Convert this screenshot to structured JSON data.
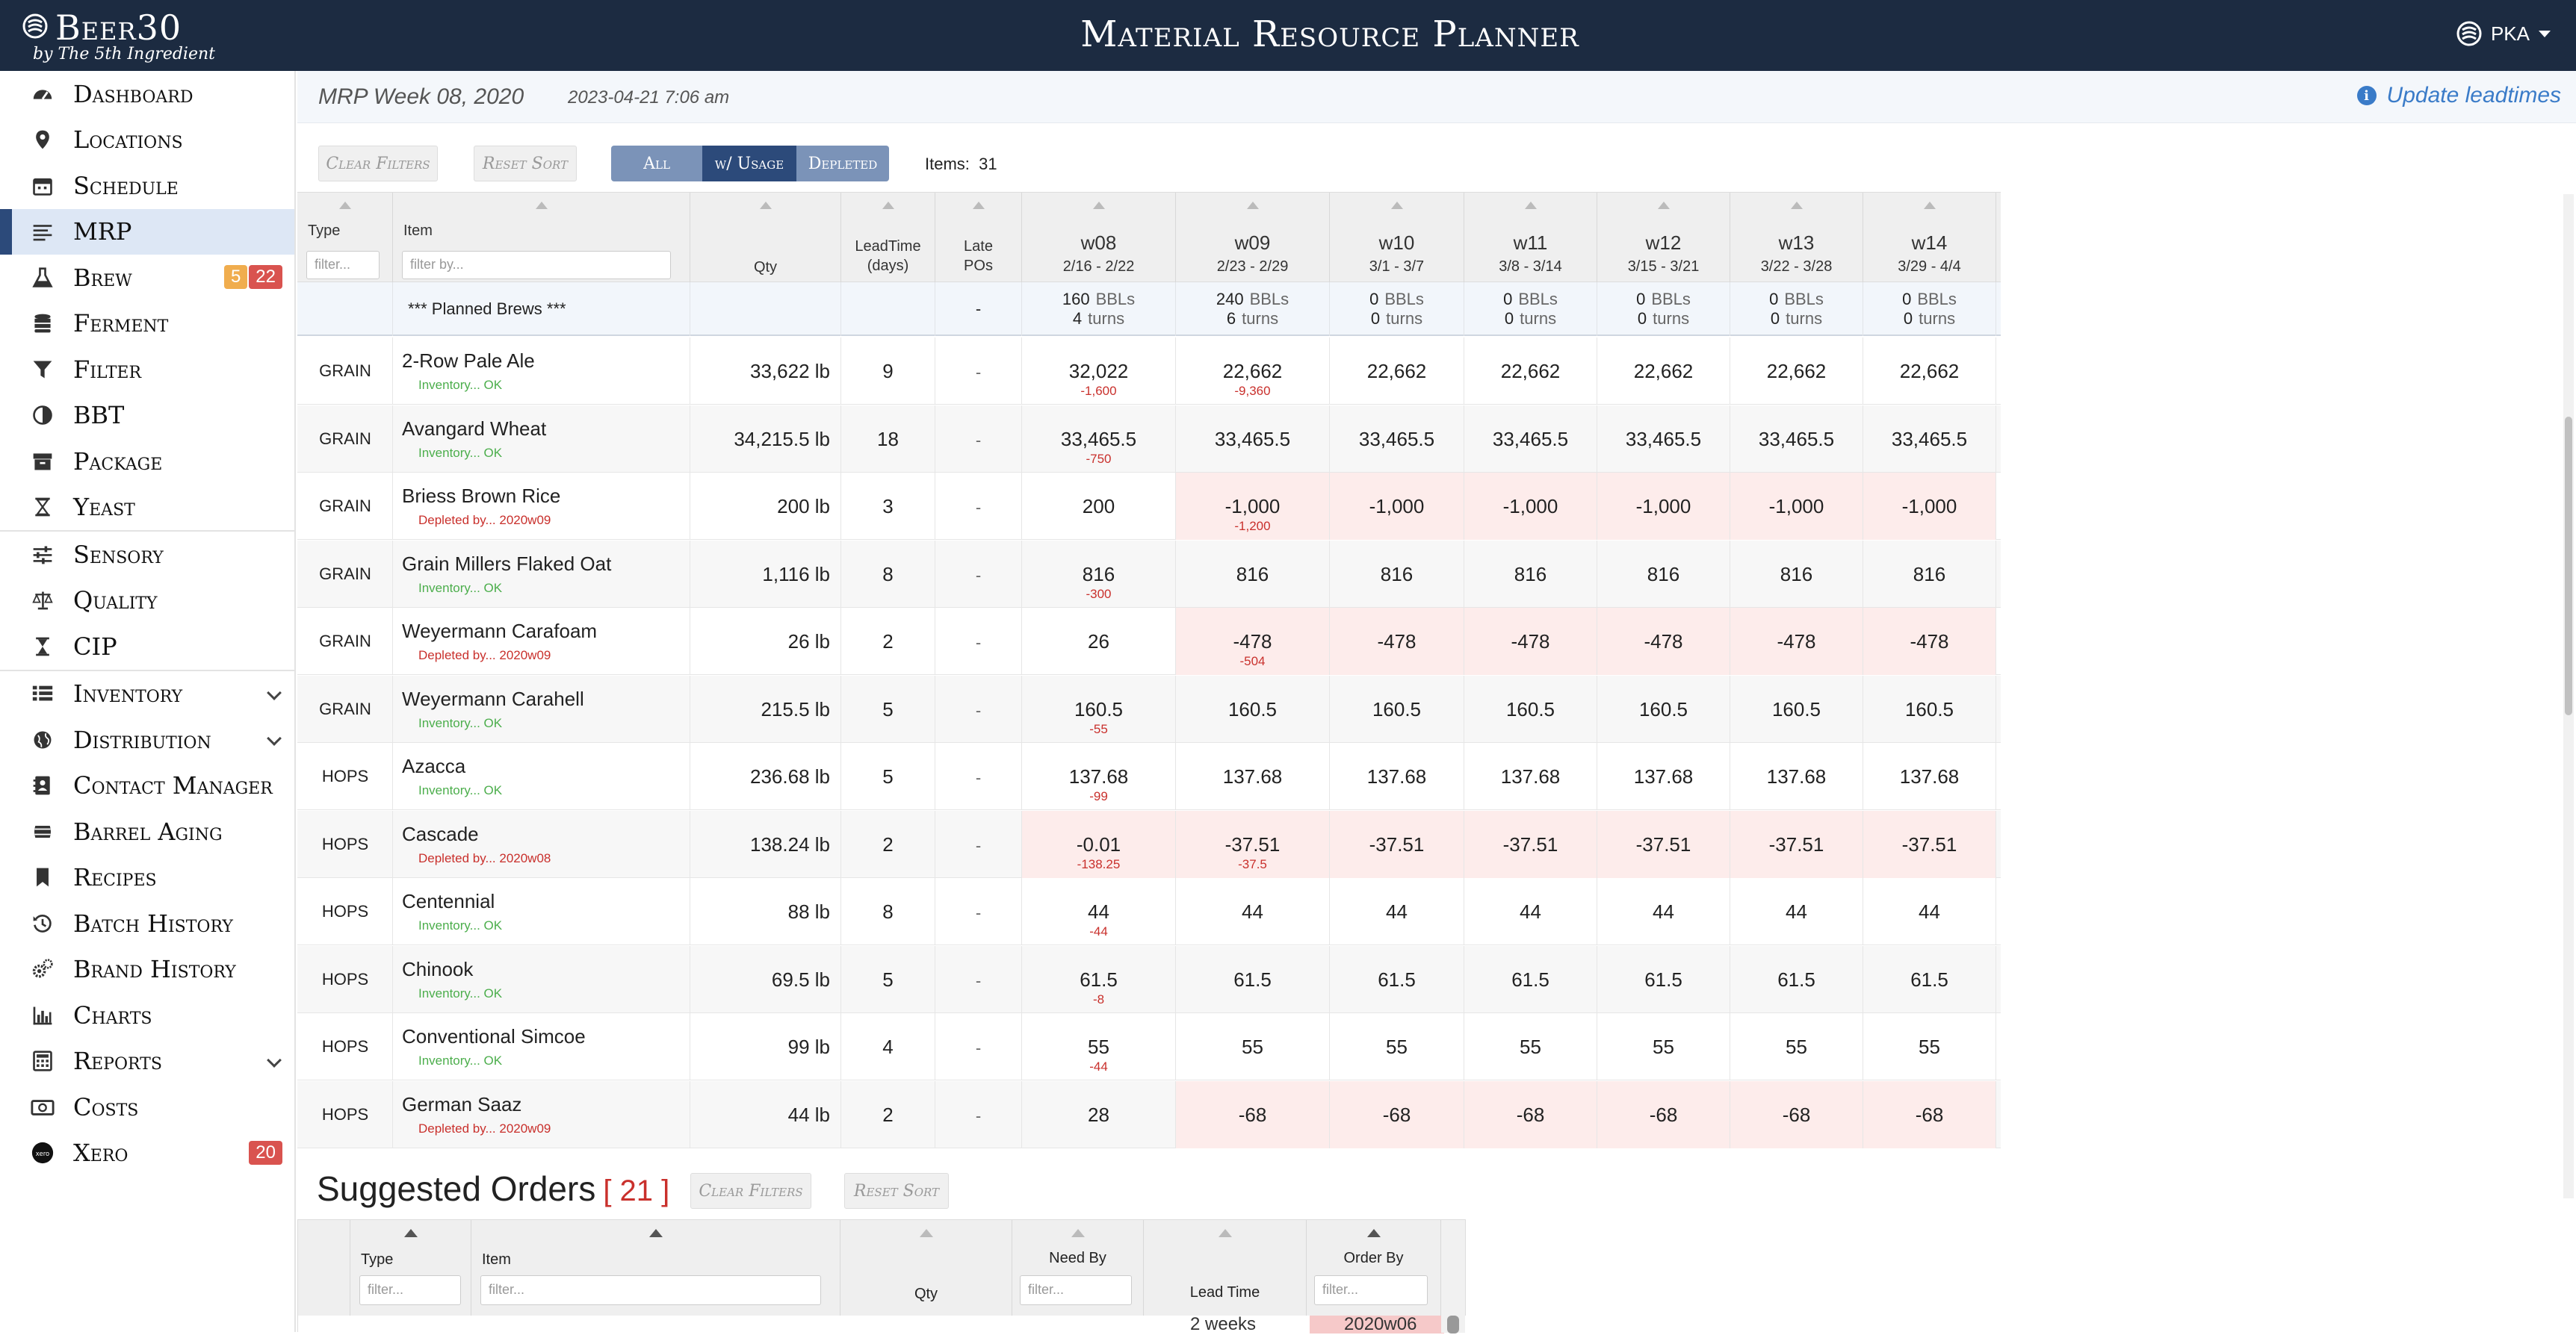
{
  "brand": {
    "name": "Beer30",
    "sub": "by The 5th Ingredient"
  },
  "app_title": "Material Resource Planner",
  "user": "PKA",
  "sidebar": [
    {
      "label": "Dashboard",
      "icon": "speedometer-icon"
    },
    {
      "label": "Locations",
      "icon": "map-marker-icon"
    },
    {
      "label": "Schedule",
      "icon": "calendar-icon"
    },
    {
      "label": "MRP",
      "icon": "list-lines-icon",
      "active": true
    },
    {
      "label": "Brew",
      "icon": "flask-icon",
      "badges": [
        "5",
        "22"
      ]
    },
    {
      "label": "Ferment",
      "icon": "database-icon"
    },
    {
      "label": "Filter",
      "icon": "funnel-icon"
    },
    {
      "label": "BBT",
      "icon": "half-circle-icon"
    },
    {
      "label": "Package",
      "icon": "archive-box-icon"
    },
    {
      "label": "Yeast",
      "icon": "hourglass-icon"
    },
    {
      "label": "Sensory",
      "icon": "sliders-icon"
    },
    {
      "label": "Quality",
      "icon": "scale-icon"
    },
    {
      "label": "CIP",
      "icon": "timer-icon"
    },
    {
      "label": "Inventory",
      "icon": "list-icon",
      "chevron": true
    },
    {
      "label": "Distribution",
      "icon": "globe-icon",
      "chevron": true
    },
    {
      "label": "Contact Manager",
      "icon": "address-book-icon"
    },
    {
      "label": "Barrel Aging",
      "icon": "barrel-icon"
    },
    {
      "label": "Recipes",
      "icon": "bookmark-icon"
    },
    {
      "label": "Batch History",
      "icon": "history-icon"
    },
    {
      "label": "Brand History",
      "icon": "cogs-icon"
    },
    {
      "label": "Charts",
      "icon": "bar-chart-icon"
    },
    {
      "label": "Reports",
      "icon": "calculator-icon",
      "chevron": true
    },
    {
      "label": "Costs",
      "icon": "money-icon"
    },
    {
      "label": "Xero",
      "icon": "xero-icon",
      "badges": [
        "20"
      ]
    }
  ],
  "header": {
    "week": "MRP Week 08, 2020",
    "date": "2023-04-21 7:06 am",
    "update_link": "Update leadtimes"
  },
  "toolbar": {
    "clear_filters": "Clear Filters",
    "reset_sort": "Reset Sort",
    "segments": [
      {
        "label": "All",
        "active": false
      },
      {
        "label": "w/ Usage",
        "active": true
      },
      {
        "label": "Depleted",
        "active": false
      }
    ],
    "items_label": "Items:",
    "items_count": "31"
  },
  "table": {
    "headers": {
      "type": "Type",
      "type_placeholder": "filter...",
      "item": "Item",
      "item_placeholder": "filter by...",
      "qty": "Qty",
      "leadtime": "LeadTime",
      "leadtime_unit": "(days)",
      "late": "Late",
      "late2": "POs"
    },
    "weeks": [
      {
        "name": "w08",
        "range": "2/16 - 2/22"
      },
      {
        "name": "w09",
        "range": "2/23 - 2/29"
      },
      {
        "name": "w10",
        "range": "3/1 - 3/7"
      },
      {
        "name": "w11",
        "range": "3/8 - 3/14"
      },
      {
        "name": "w12",
        "range": "3/15 - 3/21"
      },
      {
        "name": "w13",
        "range": "3/22 - 3/28"
      },
      {
        "name": "w14",
        "range": "3/29 - 4/4"
      }
    ],
    "planned": {
      "label": "*** Planned Brews ***",
      "late": "-",
      "bbl_unit": "BBLs",
      "turns_unit": "turns",
      "cells": [
        {
          "bbl": "160",
          "turns": "4"
        },
        {
          "bbl": "240",
          "turns": "6"
        },
        {
          "bbl": "0",
          "turns": "0"
        },
        {
          "bbl": "0",
          "turns": "0"
        },
        {
          "bbl": "0",
          "turns": "0"
        },
        {
          "bbl": "0",
          "turns": "0"
        },
        {
          "bbl": "0",
          "turns": "0"
        }
      ]
    },
    "rows": [
      {
        "type": "GRAIN",
        "item": "2-Row Pale Ale",
        "status": "Inventory... OK",
        "ok": true,
        "qty": "33,622 lb",
        "lt": "9",
        "late": "-",
        "weeks": [
          {
            "v": "32,022",
            "u": "-1,600"
          },
          {
            "v": "22,662",
            "u": "-9,360"
          },
          {
            "v": "22,662"
          },
          {
            "v": "22,662"
          },
          {
            "v": "22,662"
          },
          {
            "v": "22,662"
          },
          {
            "v": "22,662"
          }
        ]
      },
      {
        "type": "GRAIN",
        "item": "Avangard Wheat",
        "status": "Inventory... OK",
        "ok": true,
        "qty": "34,215.5 lb",
        "lt": "18",
        "late": "-",
        "weeks": [
          {
            "v": "33,465.5",
            "u": "-750"
          },
          {
            "v": "33,465.5"
          },
          {
            "v": "33,465.5"
          },
          {
            "v": "33,465.5"
          },
          {
            "v": "33,465.5"
          },
          {
            "v": "33,465.5"
          },
          {
            "v": "33,465.5"
          }
        ]
      },
      {
        "type": "GRAIN",
        "item": "Briess Brown Rice",
        "status": "Depleted by... 2020w09",
        "ok": false,
        "qty": "200 lb",
        "lt": "3",
        "late": "-",
        "weeks": [
          {
            "v": "200"
          },
          {
            "v": "-1,000",
            "u": "-1,200",
            "neg": true
          },
          {
            "v": "-1,000",
            "neg": true
          },
          {
            "v": "-1,000",
            "neg": true
          },
          {
            "v": "-1,000",
            "neg": true
          },
          {
            "v": "-1,000",
            "neg": true
          },
          {
            "v": "-1,000",
            "neg": true
          }
        ]
      },
      {
        "type": "GRAIN",
        "item": "Grain Millers Flaked Oat",
        "status": "Inventory... OK",
        "ok": true,
        "qty": "1,116 lb",
        "lt": "8",
        "late": "-",
        "weeks": [
          {
            "v": "816",
            "u": "-300"
          },
          {
            "v": "816"
          },
          {
            "v": "816"
          },
          {
            "v": "816"
          },
          {
            "v": "816"
          },
          {
            "v": "816"
          },
          {
            "v": "816"
          }
        ]
      },
      {
        "type": "GRAIN",
        "item": "Weyermann Carafoam",
        "status": "Depleted by... 2020w09",
        "ok": false,
        "qty": "26 lb",
        "lt": "2",
        "late": "-",
        "weeks": [
          {
            "v": "26"
          },
          {
            "v": "-478",
            "u": "-504",
            "neg": true
          },
          {
            "v": "-478",
            "neg": true
          },
          {
            "v": "-478",
            "neg": true
          },
          {
            "v": "-478",
            "neg": true
          },
          {
            "v": "-478",
            "neg": true
          },
          {
            "v": "-478",
            "neg": true
          }
        ]
      },
      {
        "type": "GRAIN",
        "item": "Weyermann Carahell",
        "status": "Inventory... OK",
        "ok": true,
        "qty": "215.5 lb",
        "lt": "5",
        "late": "-",
        "weeks": [
          {
            "v": "160.5",
            "u": "-55"
          },
          {
            "v": "160.5"
          },
          {
            "v": "160.5"
          },
          {
            "v": "160.5"
          },
          {
            "v": "160.5"
          },
          {
            "v": "160.5"
          },
          {
            "v": "160.5"
          }
        ]
      },
      {
        "type": "HOPS",
        "item": "Azacca",
        "status": "Inventory... OK",
        "ok": true,
        "qty": "236.68 lb",
        "lt": "5",
        "late": "-",
        "weeks": [
          {
            "v": "137.68",
            "u": "-99"
          },
          {
            "v": "137.68"
          },
          {
            "v": "137.68"
          },
          {
            "v": "137.68"
          },
          {
            "v": "137.68"
          },
          {
            "v": "137.68"
          },
          {
            "v": "137.68"
          }
        ]
      },
      {
        "type": "HOPS",
        "item": "Cascade",
        "status": "Depleted by... 2020w08",
        "ok": false,
        "qty": "138.24 lb",
        "lt": "2",
        "late": "-",
        "weeks": [
          {
            "v": "-0.01",
            "u": "-138.25",
            "neg": true
          },
          {
            "v": "-37.51",
            "u": "-37.5",
            "neg": true
          },
          {
            "v": "-37.51",
            "neg": true
          },
          {
            "v": "-37.51",
            "neg": true
          },
          {
            "v": "-37.51",
            "neg": true
          },
          {
            "v": "-37.51",
            "neg": true
          },
          {
            "v": "-37.51",
            "neg": true
          }
        ]
      },
      {
        "type": "HOPS",
        "item": "Centennial",
        "status": "Inventory... OK",
        "ok": true,
        "qty": "88 lb",
        "lt": "8",
        "late": "-",
        "weeks": [
          {
            "v": "44",
            "u": "-44"
          },
          {
            "v": "44"
          },
          {
            "v": "44"
          },
          {
            "v": "44"
          },
          {
            "v": "44"
          },
          {
            "v": "44"
          },
          {
            "v": "44"
          }
        ]
      },
      {
        "type": "HOPS",
        "item": "Chinook",
        "status": "Inventory... OK",
        "ok": true,
        "qty": "69.5 lb",
        "lt": "5",
        "late": "-",
        "weeks": [
          {
            "v": "61.5",
            "u": "-8"
          },
          {
            "v": "61.5"
          },
          {
            "v": "61.5"
          },
          {
            "v": "61.5"
          },
          {
            "v": "61.5"
          },
          {
            "v": "61.5"
          },
          {
            "v": "61.5"
          }
        ]
      },
      {
        "type": "HOPS",
        "item": "Conventional Simcoe",
        "status": "Inventory... OK",
        "ok": true,
        "qty": "99 lb",
        "lt": "4",
        "late": "-",
        "weeks": [
          {
            "v": "55",
            "u": "-44"
          },
          {
            "v": "55"
          },
          {
            "v": "55"
          },
          {
            "v": "55"
          },
          {
            "v": "55"
          },
          {
            "v": "55"
          },
          {
            "v": "55"
          }
        ]
      },
      {
        "type": "HOPS",
        "item": "German Saaz",
        "status": "Depleted by... 2020w09",
        "ok": false,
        "qty": "44 lb",
        "lt": "2",
        "late": "-",
        "weeks": [
          {
            "v": "28"
          },
          {
            "v": "-68",
            "neg": true
          },
          {
            "v": "-68",
            "neg": true
          },
          {
            "v": "-68",
            "neg": true
          },
          {
            "v": "-68",
            "neg": true
          },
          {
            "v": "-68",
            "neg": true
          },
          {
            "v": "-68",
            "neg": true
          }
        ]
      }
    ]
  },
  "suggested": {
    "title": "Suggested Orders",
    "count": "[ 21 ]",
    "clear_filters": "Clear Filters",
    "reset_sort": "Reset Sort",
    "headers": {
      "type": "Type",
      "type_placeholder": "filter...",
      "item": "Item",
      "item_placeholder": "filter...",
      "qty": "Qty",
      "need_by": "Need By",
      "need_by_placeholder": "filter...",
      "lead_time": "Lead Time",
      "order_by": "Order By",
      "order_by_placeholder": "filter..."
    },
    "peek": {
      "lead_time": "2 weeks",
      "order_by": "2020w06"
    }
  },
  "colors": {
    "topbar": "#1c2b41",
    "active_nav": "#dde7f5",
    "link": "#3a7bc8",
    "negative_bg": "#fdeceb",
    "ok": "#4cae4c",
    "bad": "#c9302c"
  }
}
